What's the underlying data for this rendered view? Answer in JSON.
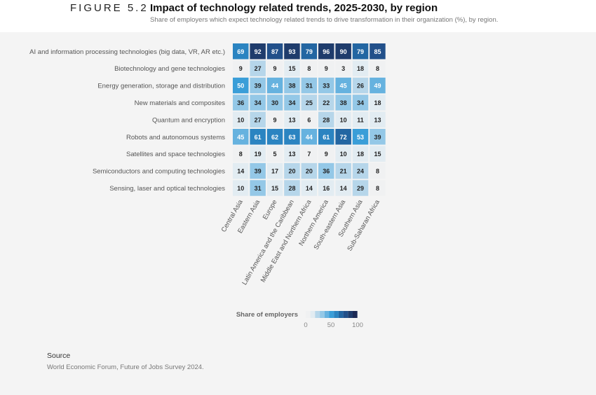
{
  "header": {
    "figure": "FIGURE 5.2",
    "title": "Impact of technology related trends, 2025-2030, by region",
    "subtitle": "Share of employers which expect  technology related trends to drive transformation in their organization (%), by region."
  },
  "chart_data": {
    "type": "heatmap",
    "rows": [
      "AI and information processing technologies (big data, VR, AR etc.)",
      "Biotechnology and gene technologies",
      "Energy generation, storage and distribution",
      "New materials and composites",
      "Quantum and encryption",
      "Robots and autonomous systems",
      "Satellites and space technologies",
      "Semiconductors and computing technologies",
      "Sensing, laser and optical technologies"
    ],
    "columns": [
      "Central Asia",
      "Eastern Asia",
      "Europe",
      "Latin America and the Caribbean",
      "Middle East and Northern Africa",
      "Northern America",
      "South-eastern Asia",
      "Southern Asia",
      "Sub-Saharan Africa"
    ],
    "values": [
      [
        69,
        92,
        87,
        93,
        79,
        96,
        90,
        79,
        85
      ],
      [
        9,
        27,
        9,
        15,
        8,
        9,
        3,
        18,
        8
      ],
      [
        50,
        39,
        44,
        38,
        31,
        33,
        45,
        26,
        49
      ],
      [
        36,
        34,
        30,
        34,
        25,
        22,
        38,
        34,
        18
      ],
      [
        10,
        27,
        9,
        13,
        6,
        28,
        10,
        11,
        13
      ],
      [
        45,
        61,
        62,
        63,
        44,
        61,
        72,
        53,
        39
      ],
      [
        8,
        19,
        5,
        13,
        7,
        9,
        10,
        18,
        15
      ],
      [
        14,
        39,
        17,
        20,
        20,
        36,
        21,
        24,
        8
      ],
      [
        10,
        31,
        15,
        28,
        14,
        16,
        14,
        29,
        8
      ]
    ],
    "legend": {
      "title": "Share of employers",
      "ticks": [
        "0",
        "50",
        "100"
      ],
      "range": [
        0,
        100
      ]
    },
    "colors": [
      "#f0f1f2",
      "#e2ecf2",
      "#b6d6ea",
      "#94c8e7",
      "#66b2df",
      "#3a9ed8",
      "#2b84c1",
      "#2366a2",
      "#22508a",
      "#1f3c6c",
      "#1c2a55"
    ]
  },
  "source": {
    "heading": "Source",
    "text": "World Economic Forum, Future of Jobs Survey 2024."
  }
}
